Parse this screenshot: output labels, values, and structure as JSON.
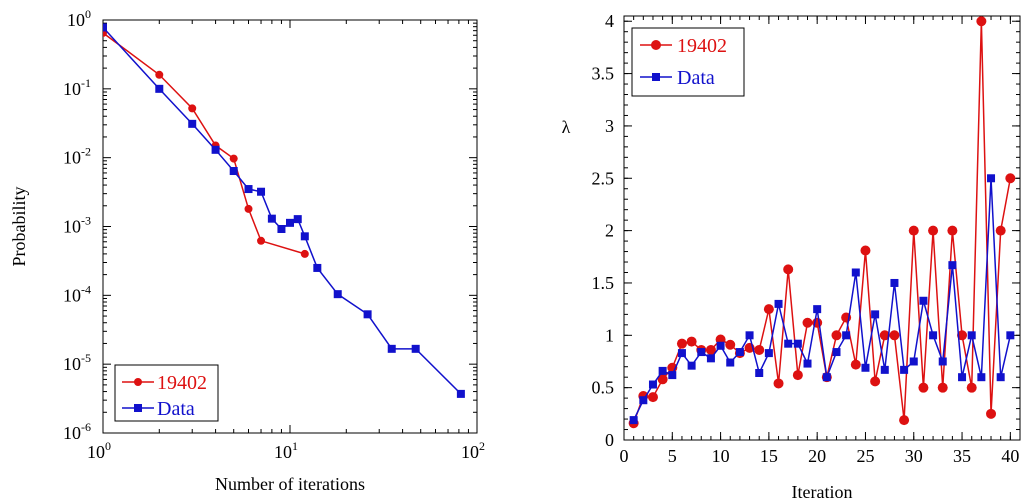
{
  "chart_data": [
    {
      "type": "line",
      "xlabel": "Number of iterations",
      "ylabel": "Probability",
      "x_scale": "log",
      "y_scale": "log",
      "xlim": [
        1,
        100
      ],
      "ylim": [
        1e-06,
        1
      ],
      "x_ticks": [
        {
          "value": 1,
          "base": "10",
          "exp": "0"
        },
        {
          "value": 10,
          "base": "10",
          "exp": "1"
        },
        {
          "value": 100,
          "base": "10",
          "exp": "2"
        }
      ],
      "y_ticks": [
        {
          "value": 1,
          "base": "10",
          "exp": "0"
        },
        {
          "value": 0.1,
          "base": "10",
          "exp": "-1"
        },
        {
          "value": 0.01,
          "base": "10",
          "exp": "-2"
        },
        {
          "value": 0.001,
          "base": "10",
          "exp": "-3"
        },
        {
          "value": 0.0001,
          "base": "10",
          "exp": "-4"
        },
        {
          "value": 1e-05,
          "base": "10",
          "exp": "-5"
        },
        {
          "value": 1e-06,
          "base": "10",
          "exp": "-6"
        }
      ],
      "legend_position": "bottom-left",
      "series": [
        {
          "name": "19402",
          "color": "#dd1111",
          "marker": "circle",
          "x": [
            1,
            2,
            3,
            4,
            5,
            6,
            7,
            12
          ],
          "y": [
            0.65,
            0.16,
            0.052,
            0.015,
            0.0097,
            0.0018,
            0.00062,
            0.0004
          ]
        },
        {
          "name": "Data",
          "color": "#1111cc",
          "marker": "square",
          "x": [
            1,
            2,
            3,
            4,
            5,
            6,
            7,
            8,
            9,
            10,
            11,
            12,
            14,
            18,
            26,
            35,
            47,
            82
          ],
          "y": [
            0.78,
            0.1,
            0.031,
            0.013,
            0.0064,
            0.0035,
            0.0032,
            0.0013,
            0.00092,
            0.00113,
            0.00128,
            0.00072,
            0.00025,
            0.000104,
            5.3e-05,
            1.67e-05,
            1.67e-05,
            3.7e-06
          ]
        }
      ]
    },
    {
      "type": "line",
      "xlabel": "Iteration",
      "ylabel": "λ",
      "xlim": [
        0,
        41
      ],
      "ylim": [
        0,
        4.05
      ],
      "x_ticks": [
        0,
        5,
        10,
        15,
        20,
        25,
        30,
        35,
        40
      ],
      "y_ticks": [
        0,
        0.5,
        1,
        1.5,
        2,
        2.5,
        3,
        3.5,
        4
      ],
      "legend_position": "top-left",
      "series": [
        {
          "name": "19402",
          "color": "#dd1111",
          "marker": "circle",
          "x": [
            1,
            2,
            3,
            4,
            5,
            6,
            7,
            8,
            9,
            10,
            11,
            12,
            13,
            14,
            15,
            16,
            17,
            18,
            19,
            20,
            21,
            22,
            23,
            24,
            25,
            26,
            27,
            28,
            29,
            30,
            31,
            32,
            33,
            34,
            35,
            36,
            37,
            38,
            39,
            40
          ],
          "y": [
            0.16,
            0.42,
            0.41,
            0.58,
            0.69,
            0.92,
            0.94,
            0.86,
            0.86,
            0.96,
            0.91,
            0.83,
            0.88,
            0.86,
            1.25,
            0.54,
            1.63,
            0.62,
            1.12,
            1.12,
            0.6,
            1.0,
            1.17,
            0.72,
            1.81,
            0.56,
            1.0,
            1.0,
            0.19,
            2.0,
            0.5,
            2.0,
            0.5,
            2.0,
            1.0,
            0.5,
            4.0,
            0.25,
            2.0,
            2.5
          ]
        },
        {
          "name": "Data",
          "color": "#1111cc",
          "marker": "square",
          "x": [
            1,
            2,
            3,
            4,
            5,
            6,
            7,
            8,
            9,
            10,
            11,
            12,
            13,
            14,
            15,
            16,
            17,
            18,
            19,
            20,
            21,
            22,
            23,
            24,
            25,
            26,
            27,
            28,
            29,
            30,
            31,
            32,
            33,
            34,
            35,
            36,
            37,
            38,
            39,
            40
          ],
          "y": [
            0.19,
            0.38,
            0.53,
            0.66,
            0.62,
            0.83,
            0.71,
            0.84,
            0.78,
            0.9,
            0.74,
            0.84,
            1.0,
            0.64,
            0.83,
            1.3,
            0.92,
            0.92,
            0.73,
            1.25,
            0.6,
            0.84,
            1.0,
            1.6,
            0.69,
            1.2,
            0.67,
            1.5,
            0.67,
            0.75,
            1.33,
            1.0,
            0.75,
            1.67,
            0.6,
            1.0,
            0.6,
            2.5,
            0.6,
            1.0
          ]
        }
      ]
    }
  ]
}
